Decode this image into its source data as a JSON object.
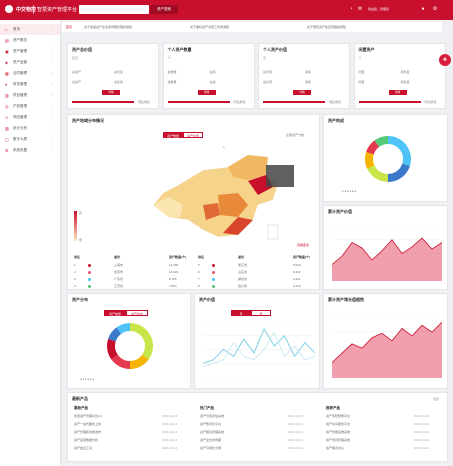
{
  "header": {
    "brand": "中交物控",
    "subtitle": "智慧资产管理平台",
    "search_placeholder": "",
    "search_button": "资产搜索",
    "user_text": "欢迎您，管理员",
    "icons": [
      "bell-icon",
      "mail-icon",
      "user-icon",
      "settings-icon"
    ]
  },
  "sidebar": {
    "items": [
      {
        "label": "首页",
        "icon": "home-icon"
      },
      {
        "label": "资产概览",
        "icon": "overview-icon"
      },
      {
        "label": "资产管理",
        "icon": "asset-icon"
      },
      {
        "label": "资产运营",
        "icon": "operate-icon"
      },
      {
        "label": "合同管理",
        "icon": "contract-icon"
      },
      {
        "label": "财务管理",
        "icon": "finance-icon"
      },
      {
        "label": "项目管理",
        "icon": "project-icon"
      },
      {
        "label": "产权管理",
        "icon": "property-icon"
      },
      {
        "label": "风险管理",
        "icon": "risk-icon"
      },
      {
        "label": "统计分析",
        "icon": "stats-icon"
      },
      {
        "label": "数字大屏",
        "icon": "screen-icon"
      },
      {
        "label": "系统设置",
        "icon": "system-icon"
      }
    ]
  },
  "tabs": [
    {
      "label": "首页"
    },
    {
      "label": "关于加强资产全生命周期管理的通知"
    },
    {
      "label": "关于做好资产清查工作的通知"
    },
    {
      "label": "关于规范资产处置流程的通知"
    }
  ],
  "stats": [
    {
      "title": "资产总价值",
      "unit": "亿元",
      "left_label": "总资产",
      "right_label": "总负债",
      "btn": "详情",
      "foot": "同比增长"
    },
    {
      "title": "个人资产数量",
      "unit": "个",
      "left_label": "总数量",
      "right_label": "在用",
      "btn": "详情",
      "foot": "同比增长"
    },
    {
      "title": "个人资产价值",
      "unit": "元",
      "left_label": "总价值",
      "right_label": "净值",
      "btn": "详情",
      "foot": "同比增长"
    },
    {
      "title": "闲置资产",
      "unit": "个",
      "left_label": "闲置",
      "right_label": "待处置",
      "btn": "详情",
      "foot": "同比增长"
    }
  ],
  "map": {
    "title": "资产地域分布情况",
    "seg": [
      "资产数量",
      "资产价值"
    ],
    "filter": "全部资产分类",
    "more": "查看更多",
    "legend_top": "高",
    "legend_bottom": "低",
    "table_left": {
      "headers": [
        "排名",
        "省份",
        "资产数量(个)"
      ],
      "rows": [
        [
          "1",
          "上海市",
          "12,456"
        ],
        [
          "2",
          "北京市",
          "10,324"
        ],
        [
          "3",
          "广东省",
          "8,765"
        ],
        [
          "4",
          "江苏省",
          "7,654"
        ]
      ]
    },
    "table_right": {
      "headers": [
        "排名",
        "省份",
        "资产数量(个)"
      ],
      "rows": [
        [
          "5",
          "浙江省",
          "6,543"
        ],
        [
          "6",
          "山东省",
          "5,432"
        ],
        [
          "7",
          "湖北省",
          "4,321"
        ],
        [
          "8",
          "四川省",
          "3,210"
        ]
      ]
    }
  },
  "donut1": {
    "title": "资产构成",
    "chart_data": {
      "type": "pie",
      "values": [
        30,
        20,
        18,
        12,
        10,
        10
      ],
      "colors": [
        "#4fc3f7",
        "#3a78c9",
        "#c8e649",
        "#f4b400",
        "#e53950",
        "#55c97a"
      ]
    }
  },
  "area1": {
    "title": "累计资产价值",
    "chart_data": {
      "type": "area",
      "values": [
        30,
        45,
        70,
        60,
        38,
        55,
        75,
        50,
        62,
        78,
        58,
        70
      ],
      "color": "#e8506a"
    }
  },
  "donut2": {
    "title": "资产分布",
    "seg": [
      "资产类型",
      "资产状态"
    ],
    "chart_data": {
      "type": "pie",
      "values": [
        35,
        15,
        15,
        15,
        10,
        10
      ],
      "colors": [
        "#c8e649",
        "#f4b400",
        "#e53950",
        "#c8102e",
        "#3a78c9",
        "#4fc3f7"
      ]
    }
  },
  "line1": {
    "title": "资产价值",
    "seg": [
      "月",
      "年"
    ],
    "chart_data": {
      "type": "line",
      "series": [
        {
          "values": [
            20,
            25,
            40,
            30,
            55,
            35,
            70,
            45,
            60,
            30,
            50,
            35
          ],
          "color": "#7fd3e6"
        },
        {
          "values": [
            15,
            20,
            25,
            50,
            30,
            25,
            40,
            65,
            30,
            45,
            25,
            30
          ],
          "color": "#cfe9f2"
        }
      ],
      "ylim": [
        0,
        80
      ]
    }
  },
  "area2": {
    "title": "累计资产增长值趋势",
    "chart_data": {
      "type": "area",
      "values": [
        25,
        40,
        55,
        48,
        65,
        72,
        60,
        80,
        68,
        85,
        74,
        90
      ],
      "color": "#e8506a"
    }
  },
  "news": {
    "title": "最新产品",
    "more": "更多",
    "columns": [
      {
        "title": "最新产品",
        "items": [
          "智慧资产管理平台1.0",
          "资产一站式服务上线",
          "资产管理新功能发布",
          "资产运营数据分析",
          "资产盘点工具"
        ],
        "dates": [
          "2021-03-15",
          "2021-03-14",
          "2021-03-13",
          "2021-03-12",
          "2021-03-11"
        ]
      },
      {
        "title": "热门产品",
        "items": [
          "资产价值评估系统",
          "资产数字化平台",
          "资产租赁管理系统",
          "资产全生命周期",
          "资产可视化大屏"
        ],
        "dates": [
          "2021-03-15",
          "2021-03-14",
          "2021-03-13",
          "2021-03-12",
          "2021-03-11"
        ]
      },
      {
        "title": "推荐产品",
        "items": [
          "资产风险预警平台",
          "资产共享服务平台",
          "资产智能运维系统",
          "资产合同管理系统",
          "资产报表中心"
        ],
        "dates": [
          "2021-03-15",
          "2021-03-14",
          "2021-03-13",
          "2021-03-12",
          "2021-03-11"
        ]
      }
    ]
  }
}
